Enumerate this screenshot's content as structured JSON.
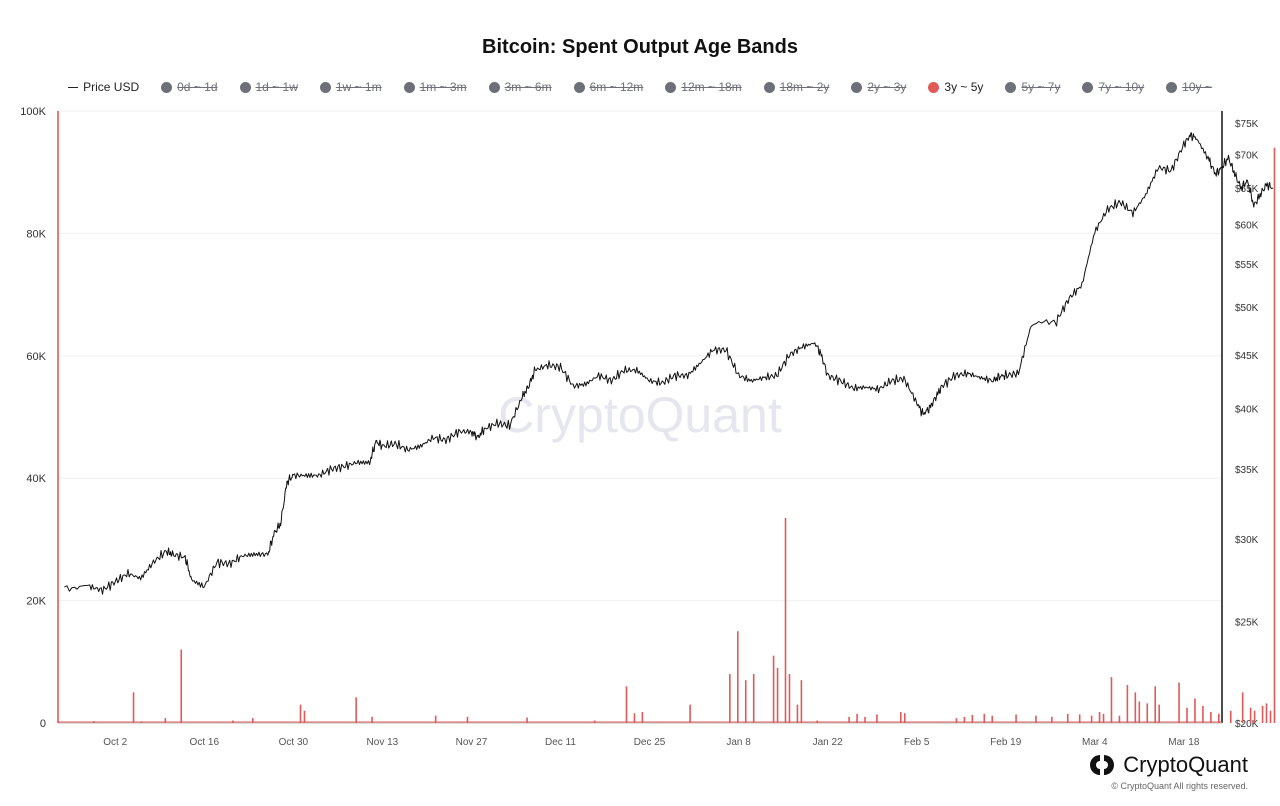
{
  "chart_data": {
    "type": "bar+line",
    "title": "Bitcoin: Spent Output Age Bands",
    "watermark": "CryptoQuant",
    "legend": [
      {
        "name": "Price USD",
        "marker": "line",
        "active": true
      },
      {
        "name": "0d ~ 1d",
        "marker": "dot",
        "active": false
      },
      {
        "name": "1d ~ 1w",
        "marker": "dot",
        "active": false
      },
      {
        "name": "1w ~ 1m",
        "marker": "dot",
        "active": false
      },
      {
        "name": "1m ~ 3m",
        "marker": "dot",
        "active": false
      },
      {
        "name": "3m ~ 6m",
        "marker": "dot",
        "active": false
      },
      {
        "name": "6m ~ 12m",
        "marker": "dot",
        "active": false
      },
      {
        "name": "12m ~ 18m",
        "marker": "dot",
        "active": false
      },
      {
        "name": "18m ~ 2y",
        "marker": "dot",
        "active": false
      },
      {
        "name": "2y ~ 3y",
        "marker": "dot",
        "active": false
      },
      {
        "name": "3y ~ 5y",
        "marker": "dot",
        "active": true
      },
      {
        "name": "5y ~ 7y",
        "marker": "dot",
        "active": false
      },
      {
        "name": "7y ~ 10y",
        "marker": "dot",
        "active": false
      },
      {
        "name": "10y ~",
        "marker": "dot",
        "active": false
      }
    ],
    "x_ticks": [
      "Oct 2",
      "Oct 16",
      "Oct 30",
      "Nov 13",
      "Nov 27",
      "Dec 11",
      "Dec 25",
      "Jan 8",
      "Jan 22",
      "Feb 5",
      "Feb 19",
      "Mar 4",
      "Mar 18"
    ],
    "y_left": {
      "ticks": [
        "0",
        "20K",
        "40K",
        "60K",
        "80K",
        "100K"
      ],
      "values": [
        0,
        20000,
        40000,
        60000,
        80000,
        100000
      ],
      "range": [
        0,
        100000
      ]
    },
    "y_right": {
      "scale": "log",
      "range": [
        20000,
        77000
      ],
      "ticks": [
        "$20K",
        "$25K",
        "$30K",
        "$35K",
        "$40K",
        "$45K",
        "$50K",
        "$55K",
        "$60K",
        "$65K",
        "$70K",
        "$75K"
      ],
      "values": [
        20000,
        25000,
        30000,
        35000,
        40000,
        45000,
        50000,
        55000,
        60000,
        65000,
        70000,
        75000
      ]
    },
    "x_range_days": [
      -9,
      174
    ],
    "series": [
      {
        "name": "3y ~ 5y",
        "type": "bar",
        "color": "#e05a5a",
        "data": [
          [
            -9,
            100000
          ],
          [
            0,
            300
          ],
          [
            10,
            5000
          ],
          [
            12,
            250
          ],
          [
            18,
            800
          ],
          [
            22,
            12000
          ],
          [
            35,
            400
          ],
          [
            40,
            800
          ],
          [
            52,
            3000
          ],
          [
            53,
            2000
          ],
          [
            66,
            4200
          ],
          [
            70,
            1000
          ],
          [
            86,
            1200
          ],
          [
            94,
            1000
          ],
          [
            109,
            900
          ],
          [
            126,
            400
          ],
          [
            134,
            6000
          ],
          [
            136,
            1600
          ],
          [
            138,
            1800
          ],
          [
            150,
            3000
          ],
          [
            160,
            8000
          ],
          [
            162,
            15000
          ],
          [
            164,
            7000
          ],
          [
            166,
            8000
          ],
          [
            171,
            11000
          ],
          [
            172,
            9000
          ],
          [
            174,
            33500
          ],
          [
            175,
            8000
          ],
          [
            177,
            3000
          ],
          [
            178,
            7000
          ],
          [
            182,
            400
          ],
          [
            190,
            1000
          ],
          [
            192,
            1500
          ],
          [
            194,
            1000
          ],
          [
            197,
            1400
          ],
          [
            203,
            1800
          ],
          [
            204,
            1600
          ],
          [
            217,
            800
          ],
          [
            219,
            1000
          ],
          [
            221,
            1300
          ],
          [
            224,
            1500
          ],
          [
            226,
            1200
          ],
          [
            232,
            1400
          ],
          [
            237,
            1200
          ],
          [
            241,
            1000
          ],
          [
            245,
            1500
          ],
          [
            248,
            1400
          ],
          [
            251,
            1200
          ],
          [
            253,
            1800
          ],
          [
            254,
            1500
          ],
          [
            256,
            7500
          ],
          [
            258,
            1200
          ],
          [
            260,
            6200
          ],
          [
            262,
            5000
          ],
          [
            263,
            3500
          ],
          [
            265,
            3200
          ],
          [
            267,
            6000
          ],
          [
            268,
            3000
          ],
          [
            273,
            6600
          ],
          [
            275,
            2500
          ],
          [
            277,
            4000
          ],
          [
            279,
            2800
          ],
          [
            281,
            1800
          ],
          [
            283,
            1500
          ],
          [
            286,
            2000
          ],
          [
            289,
            5000
          ],
          [
            291,
            2500
          ],
          [
            292,
            2000
          ],
          [
            294,
            2800
          ],
          [
            295,
            3200
          ],
          [
            296,
            2000
          ],
          [
            297,
            94000
          ]
        ]
      },
      {
        "name": "Price USD",
        "type": "line",
        "color": "#111111",
        "data": [
          [
            -8,
            27000
          ],
          [
            -4,
            27000
          ],
          [
            -2,
            26800
          ],
          [
            0,
            27300
          ],
          [
            2,
            27800
          ],
          [
            4,
            27500
          ],
          [
            6,
            28500
          ],
          [
            8,
            29200
          ],
          [
            9,
            29000
          ],
          [
            11,
            28800
          ],
          [
            12,
            27400
          ],
          [
            14,
            27000
          ],
          [
            16,
            28500
          ],
          [
            18,
            28400
          ],
          [
            20,
            28900
          ],
          [
            22,
            29000
          ],
          [
            24,
            29000
          ],
          [
            25,
            30400
          ],
          [
            26,
            31000
          ],
          [
            27,
            34000
          ],
          [
            28,
            34500
          ],
          [
            30,
            34500
          ],
          [
            32,
            34500
          ],
          [
            34,
            35000
          ],
          [
            36,
            35200
          ],
          [
            38,
            35500
          ],
          [
            40,
            35500
          ],
          [
            41,
            37200
          ],
          [
            42,
            36800
          ],
          [
            44,
            37000
          ],
          [
            46,
            36500
          ],
          [
            48,
            36800
          ],
          [
            50,
            37500
          ],
          [
            52,
            37300
          ],
          [
            54,
            38000
          ],
          [
            56,
            38000
          ],
          [
            57,
            37500
          ],
          [
            58,
            38200
          ],
          [
            60,
            38700
          ],
          [
            62,
            38500
          ],
          [
            64,
            41000
          ],
          [
            65,
            42000
          ],
          [
            66,
            43500
          ],
          [
            68,
            44000
          ],
          [
            70,
            43800
          ],
          [
            72,
            42000
          ],
          [
            74,
            42200
          ],
          [
            76,
            43000
          ],
          [
            78,
            42500
          ],
          [
            80,
            43500
          ],
          [
            82,
            43500
          ],
          [
            84,
            42500
          ],
          [
            86,
            42300
          ],
          [
            88,
            43000
          ],
          [
            90,
            43000
          ],
          [
            92,
            44200
          ],
          [
            94,
            45500
          ],
          [
            96,
            45500
          ],
          [
            98,
            43000
          ],
          [
            100,
            42500
          ],
          [
            102,
            42800
          ],
          [
            104,
            43000
          ],
          [
            106,
            45000
          ],
          [
            108,
            45800
          ],
          [
            110,
            46200
          ],
          [
            111,
            45000
          ],
          [
            112,
            43000
          ],
          [
            114,
            42500
          ],
          [
            116,
            41800
          ],
          [
            118,
            41900
          ],
          [
            120,
            41700
          ],
          [
            122,
            42500
          ],
          [
            124,
            42700
          ],
          [
            126,
            40500
          ],
          [
            127,
            39500
          ],
          [
            128,
            40000
          ],
          [
            129,
            41000
          ],
          [
            130,
            42000
          ],
          [
            132,
            43000
          ],
          [
            134,
            43200
          ],
          [
            136,
            42800
          ],
          [
            138,
            42500
          ],
          [
            139,
            42900
          ],
          [
            140,
            43000
          ],
          [
            142,
            43200
          ],
          [
            144,
            48000
          ],
          [
            148,
            48500
          ],
          [
            150,
            51000
          ],
          [
            152,
            52500
          ],
          [
            154,
            59000
          ],
          [
            156,
            62000
          ],
          [
            158,
            63000
          ],
          [
            160,
            61500
          ],
          [
            162,
            64000
          ],
          [
            164,
            68000
          ],
          [
            166,
            67500
          ],
          [
            168,
            71500
          ],
          [
            169,
            73000
          ],
          [
            170,
            72500
          ],
          [
            172,
            69000
          ],
          [
            173,
            67000
          ],
          [
            174,
            68000
          ],
          [
            175,
            69500
          ],
          [
            176,
            67000
          ],
          [
            177,
            65000
          ],
          [
            178,
            66000
          ],
          [
            179,
            62500
          ],
          [
            180,
            64000
          ],
          [
            181,
            65500
          ],
          [
            182,
            65000
          ]
        ]
      }
    ]
  },
  "brand": {
    "name": "CryptoQuant",
    "copyright": "© CryptoQuant All rights reserved."
  }
}
